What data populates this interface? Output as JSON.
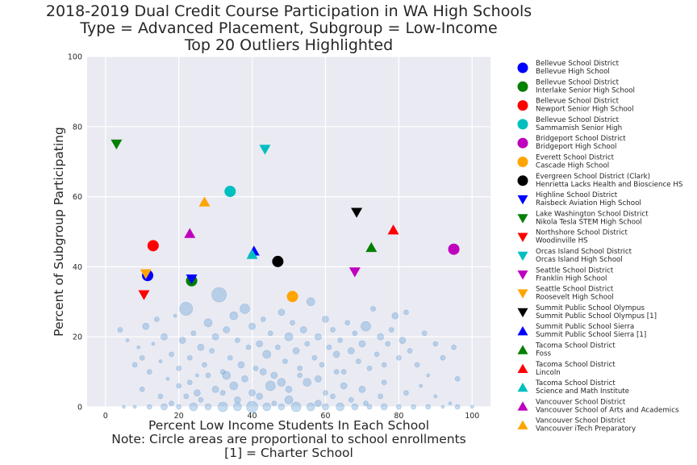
{
  "chart_data": {
    "type": "scatter",
    "title_lines": [
      "2018-2019 Dual Credit Course Participation in WA High Schools",
      "Type = Advanced Placement, Subgroup = Low-Income",
      "Top 20 Outliers Highlighted"
    ],
    "ylabel": "Percent of Subgroup Participating",
    "xlabel_lines": [
      "Percent Low Income Students In Each School",
      "Note: Circle areas are proportional to school enrollments",
      "[1] = Charter School"
    ],
    "xlim": [
      -5,
      105
    ],
    "ylim": [
      0,
      100
    ],
    "xticks": [
      0,
      20,
      40,
      60,
      80,
      100
    ],
    "yticks": [
      0,
      20,
      40,
      60,
      80,
      100
    ],
    "grid": true,
    "legend_position": "outside-right",
    "background_color": "#eaeaf2",
    "background_point_color": "#5b9bd5",
    "background_points": [
      [
        4,
        22,
        3
      ],
      [
        6,
        19,
        2
      ],
      [
        8,
        12,
        3
      ],
      [
        9,
        17,
        2
      ],
      [
        10,
        14,
        3
      ],
      [
        11,
        23,
        4
      ],
      [
        12,
        10,
        3
      ],
      [
        13,
        18,
        2
      ],
      [
        14,
        25,
        3
      ],
      [
        15,
        13,
        2
      ],
      [
        16,
        20,
        4
      ],
      [
        17,
        8,
        2
      ],
      [
        18,
        15,
        3
      ],
      [
        19,
        26,
        2
      ],
      [
        20,
        11,
        3
      ],
      [
        21,
        19,
        4
      ],
      [
        22,
        28,
        8
      ],
      [
        23,
        14,
        3
      ],
      [
        24,
        21,
        3
      ],
      [
        25,
        9,
        2
      ],
      [
        26,
        17,
        4
      ],
      [
        27,
        12,
        3
      ],
      [
        28,
        24,
        5
      ],
      [
        29,
        16,
        3
      ],
      [
        30,
        20,
        4
      ],
      [
        31,
        32,
        9
      ],
      [
        32,
        10,
        3
      ],
      [
        33,
        22,
        4
      ],
      [
        34,
        14,
        3
      ],
      [
        35,
        26,
        5
      ],
      [
        36,
        19,
        3
      ],
      [
        37,
        12,
        4
      ],
      [
        38,
        28,
        6
      ],
      [
        39,
        17,
        3
      ],
      [
        40,
        23,
        4
      ],
      [
        41,
        11,
        3
      ],
      [
        42,
        18,
        4
      ],
      [
        43,
        25,
        3
      ],
      [
        44,
        15,
        5
      ],
      [
        45,
        21,
        3
      ],
      [
        46,
        9,
        4
      ],
      [
        47,
        17,
        3
      ],
      [
        48,
        27,
        4
      ],
      [
        49,
        13,
        3
      ],
      [
        50,
        20,
        5
      ],
      [
        51,
        24,
        3
      ],
      [
        52,
        16,
        4
      ],
      [
        53,
        11,
        3
      ],
      [
        54,
        22,
        4
      ],
      [
        55,
        18,
        3
      ],
      [
        56,
        30,
        5
      ],
      [
        57,
        14,
        3
      ],
      [
        58,
        20,
        4
      ],
      [
        59,
        12,
        3
      ],
      [
        60,
        25,
        4
      ],
      [
        61,
        17,
        3
      ],
      [
        62,
        22,
        3
      ],
      [
        63,
        15,
        4
      ],
      [
        64,
        19,
        3
      ],
      [
        65,
        10,
        3
      ],
      [
        66,
        24,
        3
      ],
      [
        67,
        16,
        4
      ],
      [
        68,
        21,
        3
      ],
      [
        69,
        13,
        3
      ],
      [
        70,
        18,
        4
      ],
      [
        71,
        23,
        6
      ],
      [
        72,
        11,
        3
      ],
      [
        73,
        28,
        3
      ],
      [
        74,
        15,
        3
      ],
      [
        75,
        20,
        4
      ],
      [
        76,
        12,
        3
      ],
      [
        77,
        18,
        3
      ],
      [
        78,
        22,
        3
      ],
      [
        79,
        26,
        4
      ],
      [
        80,
        14,
        3
      ],
      [
        81,
        19,
        4
      ],
      [
        82,
        27,
        3
      ],
      [
        83,
        16,
        3
      ],
      [
        85,
        12,
        3
      ],
      [
        87,
        21,
        3
      ],
      [
        88,
        9,
        2
      ],
      [
        90,
        18,
        3
      ],
      [
        92,
        14,
        3
      ],
      [
        95,
        17,
        3
      ],
      [
        96,
        8,
        3
      ],
      [
        30,
        5,
        4
      ],
      [
        35,
        6,
        5
      ],
      [
        40,
        4,
        4
      ],
      [
        45,
        6,
        6
      ],
      [
        50,
        5,
        4
      ],
      [
        55,
        7,
        5
      ],
      [
        60,
        4,
        3
      ],
      [
        65,
        6,
        4
      ],
      [
        70,
        5,
        4
      ],
      [
        75,
        3,
        3
      ],
      [
        25,
        4,
        4
      ],
      [
        20,
        6,
        3
      ],
      [
        15,
        3,
        3
      ],
      [
        10,
        5,
        3
      ],
      [
        5,
        0,
        2
      ],
      [
        8,
        0,
        2
      ],
      [
        12,
        0,
        3
      ],
      [
        16,
        0,
        4
      ],
      [
        20,
        0,
        3
      ],
      [
        24,
        0,
        5
      ],
      [
        28,
        0,
        4
      ],
      [
        32,
        0,
        6
      ],
      [
        36,
        0,
        5
      ],
      [
        40,
        0,
        7
      ],
      [
        44,
        0,
        5
      ],
      [
        48,
        0,
        4
      ],
      [
        52,
        0,
        6
      ],
      [
        56,
        0,
        5
      ],
      [
        60,
        0,
        4
      ],
      [
        64,
        0,
        5
      ],
      [
        68,
        0,
        4
      ],
      [
        72,
        0,
        3
      ],
      [
        76,
        0,
        4
      ],
      [
        80,
        0,
        3
      ],
      [
        84,
        0,
        3
      ],
      [
        88,
        0,
        3
      ],
      [
        92,
        0,
        2
      ],
      [
        96,
        0,
        3
      ],
      [
        100,
        0,
        2
      ],
      [
        33,
        9,
        5
      ],
      [
        38,
        8,
        4
      ],
      [
        43,
        10,
        4
      ],
      [
        48,
        7,
        5
      ],
      [
        53,
        9,
        3
      ],
      [
        58,
        8,
        4
      ],
      [
        63,
        10,
        3
      ],
      [
        28,
        9,
        3
      ],
      [
        23,
        7,
        3
      ],
      [
        62,
        3,
        3
      ],
      [
        42,
        3,
        4
      ],
      [
        58,
        1,
        4
      ],
      [
        36,
        2,
        4
      ],
      [
        26,
        2,
        3
      ],
      [
        50,
        2,
        5
      ],
      [
        46,
        1,
        3
      ],
      [
        32,
        4,
        3
      ],
      [
        67,
        2,
        3
      ],
      [
        71,
        1,
        3
      ],
      [
        18,
        1,
        3
      ],
      [
        76,
        7,
        3
      ],
      [
        82,
        4,
        3
      ],
      [
        86,
        6,
        2
      ],
      [
        90,
        3,
        2
      ],
      [
        94,
        1,
        2
      ],
      [
        22,
        3,
        3
      ]
    ],
    "series": [
      {
        "district": "Bellevue School District",
        "school": "Bellevue High School",
        "marker": "circle",
        "color": "#0000ff",
        "x": 11.5,
        "y": 37.5
      },
      {
        "district": "Bellevue School District",
        "school": "Interlake Senior High School",
        "marker": "circle",
        "color": "#008000",
        "x": 23.5,
        "y": 36
      },
      {
        "district": "Bellevue School District",
        "school": "Newport Senior High School",
        "marker": "circle",
        "color": "#ff0000",
        "x": 13,
        "y": 46
      },
      {
        "district": "Bellevue School District",
        "school": "Sammamish Senior High",
        "marker": "circle",
        "color": "#00bfbf",
        "x": 34,
        "y": 61.5
      },
      {
        "district": "Bridgeport School District",
        "school": "Bridgeport High School",
        "marker": "circle",
        "color": "#bf00bf",
        "x": 95,
        "y": 45
      },
      {
        "district": "Everett School District",
        "school": "Cascade High School",
        "marker": "circle",
        "color": "#ffa500",
        "x": 51,
        "y": 31.5
      },
      {
        "district": "Evergreen School District (Clark)",
        "school": "Henrietta Lacks Health and Bioscience HS",
        "marker": "circle",
        "color": "#000000",
        "x": 47,
        "y": 41.5
      },
      {
        "district": "Highline School District",
        "school": "Raisbeck Aviation High School",
        "marker": "triangle-down",
        "color": "#0000ff",
        "x": 23.5,
        "y": 36.5
      },
      {
        "district": "Lake Washington School District",
        "school": "Nikola Tesla STEM High School",
        "marker": "triangle-down",
        "color": "#008000",
        "x": 3,
        "y": 75
      },
      {
        "district": "Northshore School District",
        "school": "Woodinville HS",
        "marker": "triangle-down",
        "color": "#ff0000",
        "x": 10.5,
        "y": 32
      },
      {
        "district": "Orcas Island School District",
        "school": "Orcas Island High School",
        "marker": "triangle-down",
        "color": "#00bfbf",
        "x": 43.5,
        "y": 73.5
      },
      {
        "district": "Seattle School District",
        "school": "Franklin High School",
        "marker": "triangle-down",
        "color": "#bf00bf",
        "x": 68,
        "y": 38.5
      },
      {
        "district": "Seattle School District",
        "school": "Roosevelt High School",
        "marker": "triangle-down",
        "color": "#ffa500",
        "x": 11,
        "y": 38
      },
      {
        "district": "Summit Public School Olympus",
        "school": "Summit Public School Olympus [1]",
        "marker": "triangle-down",
        "color": "#000000",
        "x": 68.5,
        "y": 55.5
      },
      {
        "district": "Summit Public School Sierra",
        "school": "Summit Public School Sierra [1]",
        "marker": "triangle-up",
        "color": "#0000ff",
        "x": 40.5,
        "y": 44.5
      },
      {
        "district": "Tacoma School District",
        "school": "Foss",
        "marker": "triangle-up",
        "color": "#008000",
        "x": 72.5,
        "y": 45.5
      },
      {
        "district": "Tacoma School District",
        "school": "Lincoln",
        "marker": "triangle-up",
        "color": "#ff0000",
        "x": 78.5,
        "y": 50.5
      },
      {
        "district": "Tacoma School District",
        "school": "Science and Math Institute",
        "marker": "triangle-up",
        "color": "#00bfbf",
        "x": 40,
        "y": 43.5
      },
      {
        "district": "Vancouver School District",
        "school": "Vancouver School of Arts and Academics",
        "marker": "triangle-up",
        "color": "#bf00bf",
        "x": 23,
        "y": 49.5
      },
      {
        "district": "Vancouver School District",
        "school": "Vancouver iTech Preparatory",
        "marker": "triangle-up",
        "color": "#ffa500",
        "x": 27,
        "y": 58.5
      }
    ]
  }
}
